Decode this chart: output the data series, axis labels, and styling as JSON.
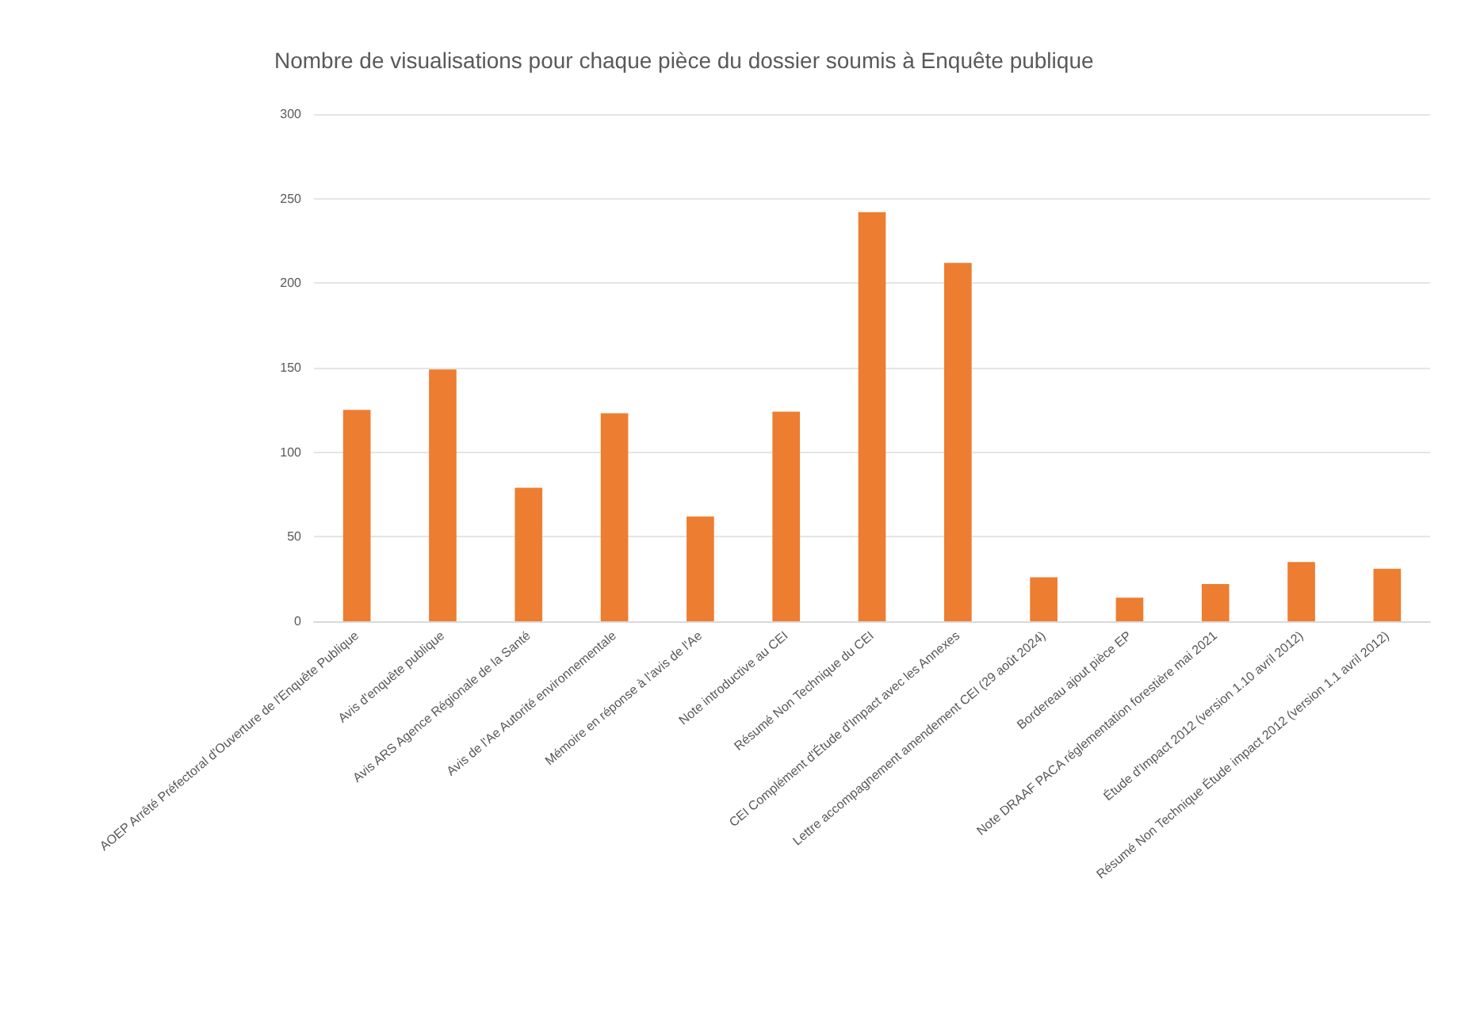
{
  "chart_data": {
    "type": "bar",
    "title": "Nombre de visualisations pour chaque pièce du dossier soumis à Enquête publique",
    "categories": [
      "AOEP Arrêté Préfectoral d'Ouverture de l'Enquête Publique",
      "Avis d'enquête publique",
      "Avis ARS Agence Régionale de la Santé",
      "Avis de l'Ae Autorité environnementale",
      "Mémoire en réponse à l'avis de l'Ae",
      "Note introductive au CEI",
      "Résumé Non Technique du CEI",
      "CEI Complément d'Étude d'Impact avec les Annexes",
      "Lettre accompagnement amendement CEI (29 août 2024)",
      "Bordereau ajout pièce EP",
      "Note DRAAF PACA réglementation forestière mai 2021",
      "Étude d'Impact 2012 (version 1.10 avril 2012)",
      "Résumé Non Technique Étude impact 2012 (version 1.1 avril 2012)"
    ],
    "values": [
      125,
      149,
      79,
      123,
      62,
      124,
      242,
      212,
      26,
      14,
      22,
      35,
      31
    ],
    "color": "#ed7d31",
    "ylim": [
      0,
      300
    ],
    "yticks": [
      0,
      50,
      100,
      150,
      200,
      250,
      300
    ],
    "grid": "y"
  }
}
